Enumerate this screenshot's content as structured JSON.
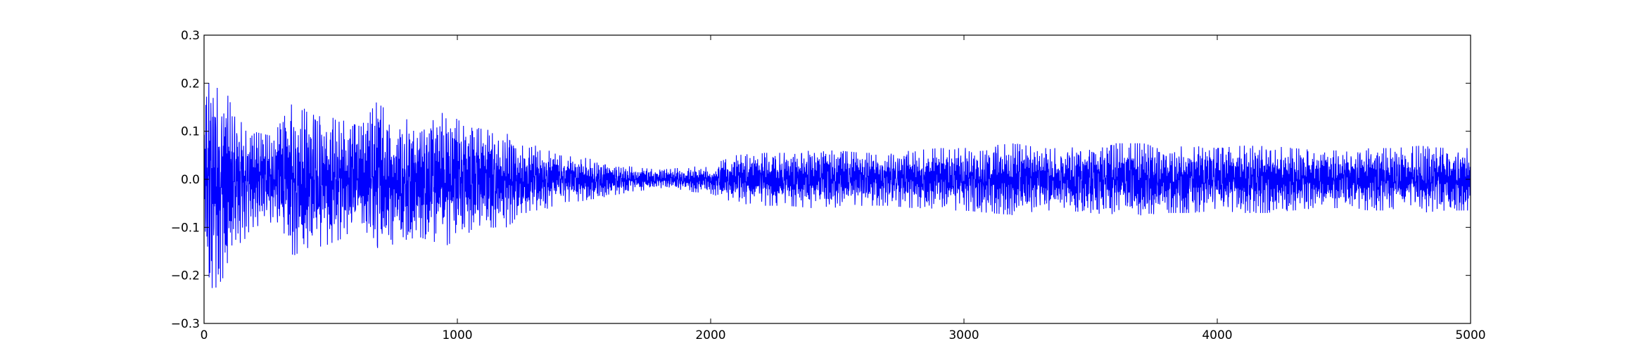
{
  "chart_data": {
    "type": "line",
    "title": "",
    "xlabel": "",
    "ylabel": "",
    "xlim": [
      0,
      5000
    ],
    "ylim": [
      -0.3,
      0.3
    ],
    "grid": false,
    "legend": "none",
    "x_ticks": [
      "0",
      "1000",
      "2000",
      "3000",
      "4000",
      "5000"
    ],
    "y_ticks": [
      "0.3",
      "0.2",
      "0.1",
      "0.0",
      "−0.1",
      "−0.2",
      "−0.3"
    ],
    "series": [
      {
        "color": "#0000ff",
        "points": 5000,
        "envelope": {
          "x": [
            0,
            25,
            70,
            130,
            190,
            270,
            350,
            420,
            470,
            560,
            620,
            680,
            760,
            850,
            950,
            1050,
            1150,
            1210,
            1240,
            1320,
            1400,
            1500,
            1600,
            1700,
            1800,
            1900,
            2000,
            2100,
            2200,
            2300,
            2400,
            2500,
            2600,
            2700,
            2800,
            2900,
            3000,
            3100,
            3200,
            3300,
            3400,
            3500,
            3600,
            3700,
            3800,
            3900,
            4000,
            4100,
            4200,
            4300,
            4400,
            4500,
            4600,
            4700,
            4800,
            4900,
            5000
          ],
          "amplitude": [
            0.16,
            0.24,
            0.21,
            0.15,
            0.1,
            0.09,
            0.16,
            0.14,
            0.14,
            0.12,
            0.11,
            0.16,
            0.13,
            0.12,
            0.14,
            0.11,
            0.1,
            0.1,
            0.07,
            0.07,
            0.05,
            0.045,
            0.035,
            0.025,
            0.02,
            0.025,
            0.03,
            0.05,
            0.055,
            0.055,
            0.06,
            0.06,
            0.055,
            0.055,
            0.06,
            0.065,
            0.065,
            0.07,
            0.075,
            0.065,
            0.065,
            0.07,
            0.075,
            0.075,
            0.07,
            0.07,
            0.065,
            0.07,
            0.07,
            0.065,
            0.06,
            0.06,
            0.065,
            0.065,
            0.07,
            0.065,
            0.065
          ]
        }
      }
    ]
  }
}
